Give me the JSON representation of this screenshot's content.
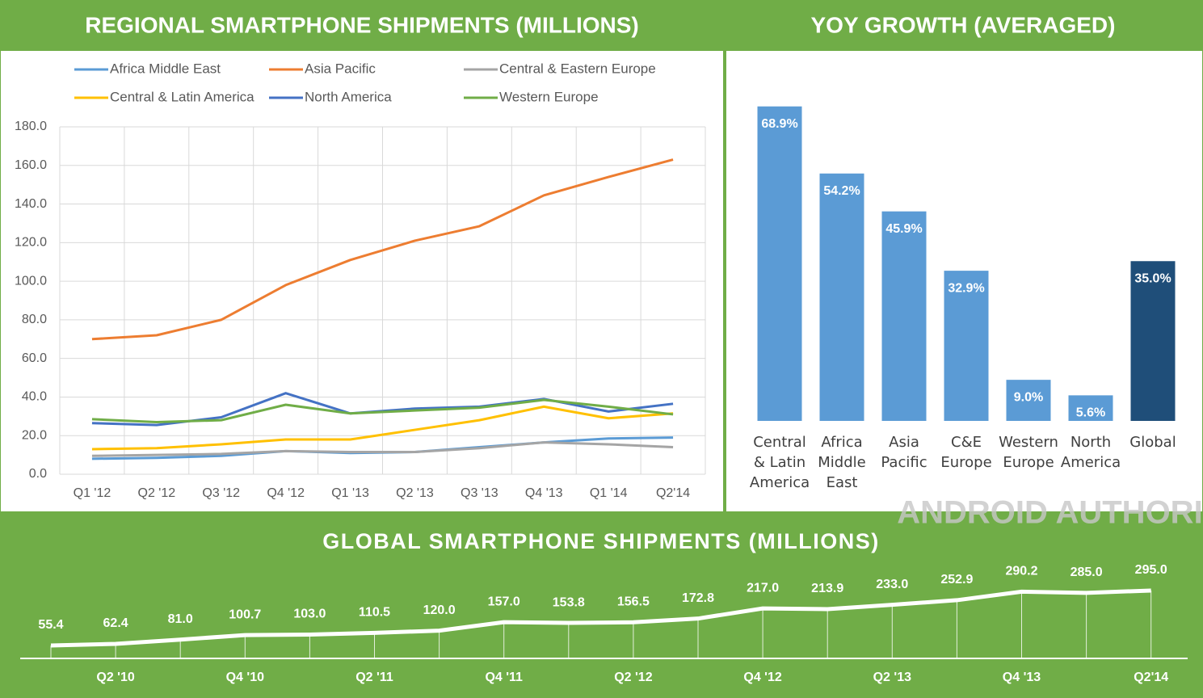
{
  "watermark": "ANDROID AUTHORITY",
  "chart_data": [
    {
      "type": "line",
      "title": "REGIONAL SMARTPHONE SHIPMENTS (MILLIONS)",
      "categories": [
        "Q1 '12",
        "Q2 '12",
        "Q3 '12",
        "Q4 '12",
        "Q1 '13",
        "Q2 '13",
        "Q3 '13",
        "Q4 '13",
        "Q1 '14",
        "Q2'14"
      ],
      "series": [
        {
          "name": "Africa Middle East",
          "color": "#5b9bd5",
          "values": [
            8,
            8.5,
            9.5,
            12,
            11,
            11.5,
            14,
            16.5,
            18.5,
            19
          ]
        },
        {
          "name": "Asia Pacific",
          "color": "#ed7d31",
          "values": [
            70,
            72,
            80,
            98,
            111,
            121,
            128.5,
            144.5,
            154,
            163
          ]
        },
        {
          "name": "Central & Eastern Europe",
          "color": "#a5a5a5",
          "values": [
            9.5,
            10,
            10.5,
            12,
            11.5,
            11.5,
            13.5,
            16.5,
            15.5,
            14
          ]
        },
        {
          "name": "Central & Latin America",
          "color": "#ffc000",
          "values": [
            13,
            13.5,
            15.5,
            18,
            18,
            23,
            28,
            35,
            29,
            31.5
          ]
        },
        {
          "name": "North America",
          "color": "#4472c4",
          "values": [
            26.5,
            25.5,
            29.5,
            42,
            31.5,
            34,
            35,
            39,
            32.5,
            36.5
          ]
        },
        {
          "name": "Western Europe",
          "color": "#70ad47",
          "values": [
            28.5,
            27,
            28,
            36,
            31.5,
            33,
            34.5,
            38.5,
            35,
            31
          ]
        }
      ],
      "ylim": [
        0,
        180
      ],
      "yticks": [
        {
          "value": 0,
          "label": "0.0"
        },
        {
          "value": 20,
          "label": "20.0"
        },
        {
          "value": 40,
          "label": "40.0"
        },
        {
          "value": 60,
          "label": "60.0"
        },
        {
          "value": 80,
          "label": "80.0"
        },
        {
          "value": 100,
          "label": "100.0"
        },
        {
          "value": 120,
          "label": "120.0"
        },
        {
          "value": 140,
          "label": "140.0"
        },
        {
          "value": 160,
          "label": "160.0"
        },
        {
          "value": 180,
          "label": "180.0"
        }
      ],
      "grid": true,
      "legend": "top"
    },
    {
      "type": "bar",
      "title": "YOY GROWTH (AVERAGED)",
      "categories": [
        "Central & Latin America",
        "Africa Middle East",
        "Asia Pacific",
        "C&E Europe",
        "Western Europe",
        "North America",
        "Global"
      ],
      "values": [
        68.9,
        54.2,
        45.9,
        32.9,
        9.0,
        5.6,
        35.0
      ],
      "value_labels": [
        "68.9%",
        "54.2%",
        "45.9%",
        "32.9%",
        "9.0%",
        "5.6%",
        "35.0%"
      ],
      "colors": [
        "#5b9bd5",
        "#5b9bd5",
        "#5b9bd5",
        "#5b9bd5",
        "#5b9bd5",
        "#5b9bd5",
        "#1f4e79"
      ]
    },
    {
      "type": "line",
      "title": "GLOBAL SMARTPHONE SHIPMENTS (MILLIONS)",
      "categories": [
        null,
        "Q2 '10",
        null,
        "Q4 '10",
        null,
        "Q2 '11",
        null,
        "Q4 '11",
        null,
        "Q2 '12",
        null,
        "Q4 '12",
        null,
        "Q2 '13",
        null,
        "Q4 '13",
        null,
        "Q2'14"
      ],
      "values": [
        55.4,
        62.4,
        81.0,
        100.7,
        103.0,
        110.5,
        120.0,
        157.0,
        153.8,
        156.5,
        172.8,
        217.0,
        213.9,
        233.0,
        252.9,
        290.2,
        285.0,
        295.0
      ],
      "value_labels": [
        "55.4",
        "62.4",
        "81.0",
        "100.7",
        "103.0",
        "110.5",
        "120.0",
        "157.0",
        "153.8",
        "156.5",
        "172.8",
        "217.0",
        "213.9",
        "233.0",
        "252.9",
        "290.2",
        "285.0",
        "295.0"
      ],
      "color": "#ffffff"
    }
  ]
}
